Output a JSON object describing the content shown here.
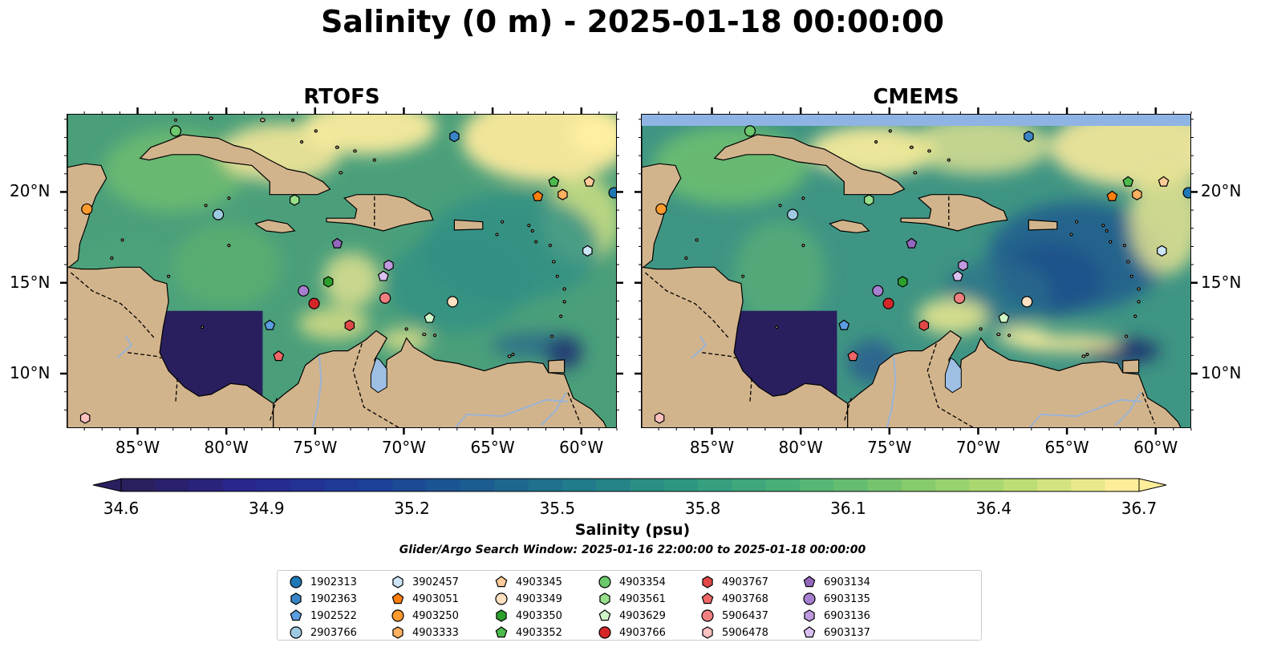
{
  "figure": {
    "title": "Salinity (0 m) - 2025-01-18 00:00:00",
    "search_window": "Glider/Argo Search Window: 2025-01-16 22:00:00 to 2025-01-18 00:00:00"
  },
  "panels": [
    {
      "title": "RTOFS",
      "top_strip": false
    },
    {
      "title": "CMEMS",
      "top_strip": true
    }
  ],
  "map_extent": {
    "lon": [
      -89,
      -58
    ],
    "lat": [
      7,
      24.3
    ]
  },
  "x_ticks": [
    {
      "lon": -85,
      "label": "85°W"
    },
    {
      "lon": -80,
      "label": "80°W"
    },
    {
      "lon": -75,
      "label": "75°W"
    },
    {
      "lon": -70,
      "label": "70°W"
    },
    {
      "lon": -65,
      "label": "65°W"
    },
    {
      "lon": -60,
      "label": "60°W"
    }
  ],
  "y_ticks": [
    {
      "lat": 20,
      "label": "20°N"
    },
    {
      "lat": 15,
      "label": "15°N"
    },
    {
      "lat": 10,
      "label": "10°N"
    }
  ],
  "colorbar": {
    "label": "Salinity (psu)",
    "min": 34.6,
    "max": 36.7,
    "ticks": [
      "34.6",
      "34.9",
      "35.2",
      "35.5",
      "35.8",
      "36.1",
      "36.4",
      "36.7"
    ],
    "extend": "both",
    "colormap_stops": [
      "#2a1f5e",
      "#28268f",
      "#1d3c98",
      "#1a5a92",
      "#217a8a",
      "#2e9882",
      "#4bb278",
      "#7ec86b",
      "#b8dc72",
      "#ffee99"
    ]
  },
  "colors": {
    "land": "#d2b48c",
    "ocean_mid": "#4a9f7a",
    "ocean_green": "#6bbe6e",
    "ocean_fresh": "#ffeea0",
    "ocean_deep_blue": "#25346e",
    "pacific": "#2a1f5e",
    "lake": "#9ebfe3",
    "cmems_nodata": "#8fb4e3"
  },
  "legend": [
    {
      "id": "1902313",
      "marker": "circle",
      "color": "#1f77b4"
    },
    {
      "id": "1902363",
      "marker": "hexagon",
      "color": "#3a85c8"
    },
    {
      "id": "1902522",
      "marker": "pentagon",
      "color": "#5a9de0"
    },
    {
      "id": "2903766",
      "marker": "circle",
      "color": "#9ecae1"
    },
    {
      "id": "3902457",
      "marker": "hexagon",
      "color": "#cce5f6"
    },
    {
      "id": "4903051",
      "marker": "pentagon",
      "color": "#ff7f0e"
    },
    {
      "id": "4903250",
      "marker": "circle",
      "color": "#ff9a2e"
    },
    {
      "id": "4903333",
      "marker": "hexagon",
      "color": "#ffb060"
    },
    {
      "id": "4903345",
      "marker": "pentagon",
      "color": "#ffcc99"
    },
    {
      "id": "4903349",
      "marker": "circle",
      "color": "#ffe0c0"
    },
    {
      "id": "4903350",
      "marker": "hexagon",
      "color": "#2ca02c"
    },
    {
      "id": "4903352",
      "marker": "pentagon",
      "color": "#4cbb4c"
    },
    {
      "id": "4903354",
      "marker": "circle",
      "color": "#6cc86c"
    },
    {
      "id": "4903561",
      "marker": "hexagon",
      "color": "#98df8a"
    },
    {
      "id": "4903629",
      "marker": "pentagon",
      "color": "#d0f5c8"
    },
    {
      "id": "4903766",
      "marker": "circle",
      "color": "#d62728"
    },
    {
      "id": "4903767",
      "marker": "hexagon",
      "color": "#e04848"
    },
    {
      "id": "4903768",
      "marker": "pentagon",
      "color": "#ee6666"
    },
    {
      "id": "5906437",
      "marker": "circle",
      "color": "#f08080"
    },
    {
      "id": "5906478",
      "marker": "hexagon",
      "color": "#ffc0c0"
    },
    {
      "id": "6903134",
      "marker": "pentagon",
      "color": "#9467bd"
    },
    {
      "id": "6903135",
      "marker": "circle",
      "color": "#a77fd0"
    },
    {
      "id": "6903136",
      "marker": "hexagon",
      "color": "#c09ae0"
    },
    {
      "id": "6903137",
      "marker": "pentagon",
      "color": "#d9c0f0"
    }
  ],
  "platforms": [
    {
      "id": "1902313",
      "lon": -58.2,
      "lat": 20.0
    },
    {
      "id": "1902363",
      "lon": -67.2,
      "lat": 23.1
    },
    {
      "id": "1902522",
      "lon": -77.6,
      "lat": 12.7
    },
    {
      "id": "2903766",
      "lon": -80.5,
      "lat": 18.8
    },
    {
      "id": "3902457",
      "lon": -59.7,
      "lat": 16.8
    },
    {
      "id": "4903051",
      "lon": -62.5,
      "lat": 19.8
    },
    {
      "id": "4903250",
      "lon": -87.9,
      "lat": 19.1
    },
    {
      "id": "4903333",
      "lon": -61.1,
      "lat": 19.9
    },
    {
      "id": "4903345",
      "lon": -59.6,
      "lat": 20.6
    },
    {
      "id": "4903349",
      "lon": -67.3,
      "lat": 14.0
    },
    {
      "id": "4903350",
      "lon": -74.3,
      "lat": 15.1
    },
    {
      "id": "4903352",
      "lon": -61.6,
      "lat": 20.6
    },
    {
      "id": "4903354",
      "lon": -82.9,
      "lat": 23.4
    },
    {
      "id": "4903561",
      "lon": -76.2,
      "lat": 19.6
    },
    {
      "id": "4903629",
      "lon": -68.6,
      "lat": 13.1
    },
    {
      "id": "4903766",
      "lon": -75.1,
      "lat": 13.9
    },
    {
      "id": "4903767",
      "lon": -73.1,
      "lat": 12.7
    },
    {
      "id": "4903768",
      "lon": -77.1,
      "lat": 11.0
    },
    {
      "id": "5906437",
      "lon": -71.1,
      "lat": 14.2
    },
    {
      "id": "5906478",
      "lon": -88.0,
      "lat": 7.6
    },
    {
      "id": "6903134",
      "lon": -73.8,
      "lat": 17.2
    },
    {
      "id": "6903135",
      "lon": -75.7,
      "lat": 14.6
    },
    {
      "id": "6903136",
      "lon": -70.9,
      "lat": 16.0
    },
    {
      "id": "6903137",
      "lon": -71.2,
      "lat": 15.4
    }
  ]
}
